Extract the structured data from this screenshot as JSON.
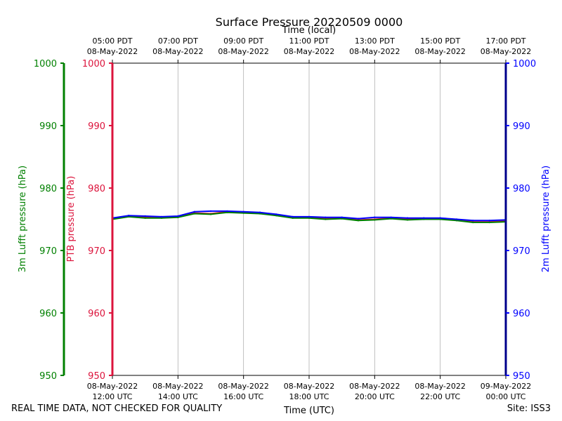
{
  "chart_data": {
    "type": "line",
    "title": "Surface Pressure 20220509 0000",
    "top_axis_label": "Time (local)",
    "xlabel": "Time (UTC)",
    "ylabel_left_outer": "3m Lufft pressure (hPa)",
    "ylabel_left_inner": "PTB pressure (hPa)",
    "ylabel_right": "2m Lufft pressure (hPa)",
    "xlim_utc_hours": [
      12,
      24
    ],
    "ylim": [
      950,
      1000
    ],
    "y_ticks": [
      950,
      960,
      970,
      980,
      990,
      1000
    ],
    "x_ticks_bottom": [
      {
        "line1": "08-May-2022",
        "line2": "12:00 UTC"
      },
      {
        "line1": "08-May-2022",
        "line2": "14:00 UTC"
      },
      {
        "line1": "08-May-2022",
        "line2": "16:00 UTC"
      },
      {
        "line1": "08-May-2022",
        "line2": "18:00 UTC"
      },
      {
        "line1": "08-May-2022",
        "line2": "20:00 UTC"
      },
      {
        "line1": "08-May-2022",
        "line2": "22:00 UTC"
      },
      {
        "line1": "09-May-2022",
        "line2": "00:00 UTC"
      }
    ],
    "x_ticks_top": [
      {
        "line1": "05:00 PDT",
        "line2": "08-May-2022"
      },
      {
        "line1": "07:00 PDT",
        "line2": "08-May-2022"
      },
      {
        "line1": "09:00 PDT",
        "line2": "08-May-2022"
      },
      {
        "line1": "11:00 PDT",
        "line2": "08-May-2022"
      },
      {
        "line1": "13:00 PDT",
        "line2": "08-May-2022"
      },
      {
        "line1": "15:00 PDT",
        "line2": "08-May-2022"
      },
      {
        "line1": "17:00 PDT",
        "line2": "08-May-2022"
      }
    ],
    "grid": "vertical",
    "colors": {
      "lufft3m": "#008000",
      "ptb": "#dc143c",
      "lufft2m": "#0000ff"
    },
    "series": [
      {
        "key": "lufft3m",
        "x": [
          12.0,
          12.5,
          13.0,
          13.5,
          14.0,
          14.5,
          15.0,
          15.5,
          16.0,
          16.5,
          17.0,
          17.5,
          18.0,
          18.5,
          19.0,
          19.5,
          20.0,
          20.5,
          21.0,
          21.5,
          22.0,
          22.5,
          23.0,
          23.5,
          24.0
        ],
        "y": [
          975.0,
          975.4,
          975.2,
          975.2,
          975.3,
          975.9,
          975.8,
          976.1,
          976.0,
          975.9,
          975.6,
          975.2,
          975.2,
          975.0,
          975.1,
          974.8,
          974.9,
          975.1,
          974.9,
          975.0,
          975.0,
          974.8,
          974.5,
          974.5,
          974.6
        ]
      },
      {
        "key": "ptb",
        "x": [
          12.0,
          12.5,
          13.0,
          13.5,
          14.0,
          14.5,
          15.0,
          15.5,
          16.0,
          16.5,
          17.0,
          17.5,
          18.0,
          18.5,
          19.0,
          19.5,
          20.0,
          20.5,
          21.0,
          21.5,
          22.0,
          22.5,
          23.0,
          23.5,
          24.0
        ],
        "y": [
          975.1,
          975.5,
          975.3,
          975.3,
          975.4,
          976.0,
          975.9,
          976.2,
          976.1,
          976.0,
          975.7,
          975.3,
          975.3,
          975.1,
          975.2,
          974.9,
          975.0,
          975.2,
          975.0,
          975.1,
          975.1,
          974.9,
          974.6,
          974.6,
          974.7
        ]
      },
      {
        "key": "lufft2m",
        "x": [
          12.0,
          12.5,
          13.0,
          13.5,
          14.0,
          14.5,
          15.0,
          15.5,
          16.0,
          16.5,
          17.0,
          17.5,
          18.0,
          18.5,
          19.0,
          19.5,
          20.0,
          20.5,
          21.0,
          21.5,
          22.0,
          22.5,
          23.0,
          23.5,
          24.0
        ],
        "y": [
          975.2,
          975.6,
          975.5,
          975.4,
          975.5,
          976.2,
          976.3,
          976.3,
          976.2,
          976.1,
          975.8,
          975.4,
          975.4,
          975.3,
          975.3,
          975.1,
          975.3,
          975.3,
          975.2,
          975.2,
          975.2,
          975.0,
          974.8,
          974.8,
          974.9
        ]
      }
    ]
  },
  "footer": {
    "left_note": "REAL TIME DATA, NOT CHECKED FOR QUALITY",
    "site": "Site: ISS3"
  }
}
